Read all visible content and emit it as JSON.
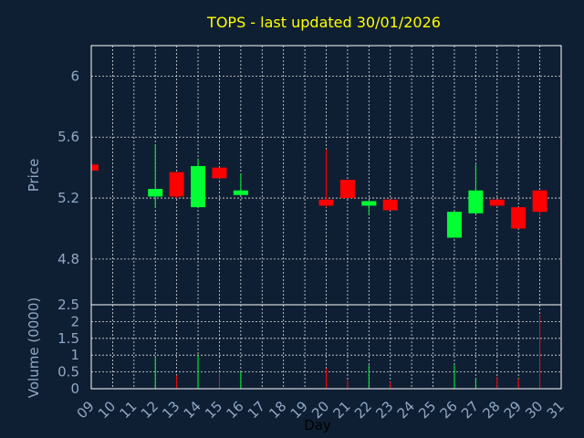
{
  "chart_data": {
    "type": "candlestick",
    "title": "TOPS - last updated 30/01/2026",
    "xlabel": "Day",
    "price_panel": {
      "ylabel": "Price",
      "ylim": [
        4.5,
        6.2
      ],
      "yticks": [
        "6",
        "5.6",
        "5.2",
        "4.8"
      ]
    },
    "volume_panel": {
      "ylabel": "Volume (0000)",
      "ylim": [
        0,
        2.5
      ],
      "yticks": [
        "2.5",
        "2",
        "1.5",
        "1",
        "0.5",
        "0"
      ]
    },
    "x_ticks": [
      "09",
      "10",
      "11",
      "12",
      "13",
      "14",
      "15",
      "16",
      "17",
      "18",
      "19",
      "20",
      "21",
      "22",
      "23",
      "24",
      "25",
      "26",
      "27",
      "28",
      "29",
      "30",
      "31"
    ],
    "up_color": "#00ff33",
    "down_color": "#ff0000",
    "candles": [
      {
        "day": "09",
        "open": 5.42,
        "high": 5.42,
        "low": 5.38,
        "close": 5.38
      },
      {
        "day": "12",
        "open": 5.21,
        "high": 5.55,
        "low": 5.14,
        "close": 5.26
      },
      {
        "day": "13",
        "open": 5.37,
        "high": 5.37,
        "low": 5.2,
        "close": 5.21
      },
      {
        "day": "14",
        "open": 5.14,
        "high": 5.46,
        "low": 5.14,
        "close": 5.41
      },
      {
        "day": "15",
        "open": 5.4,
        "high": 5.4,
        "low": 5.32,
        "close": 5.33
      },
      {
        "day": "16",
        "open": 5.22,
        "high": 5.36,
        "low": 5.22,
        "close": 5.25
      },
      {
        "day": "20",
        "open": 5.19,
        "high": 5.52,
        "low": 5.14,
        "close": 5.15
      },
      {
        "day": "21",
        "open": 5.32,
        "high": 5.32,
        "low": 5.2,
        "close": 5.2
      },
      {
        "day": "22",
        "open": 5.15,
        "high": 5.18,
        "low": 5.09,
        "close": 5.18
      },
      {
        "day": "23",
        "open": 5.19,
        "high": 5.19,
        "low": 5.12,
        "close": 5.12
      },
      {
        "day": "26",
        "open": 4.94,
        "high": 5.11,
        "low": 4.94,
        "close": 5.11
      },
      {
        "day": "27",
        "open": 5.1,
        "high": 5.42,
        "low": 5.1,
        "close": 5.25
      },
      {
        "day": "28",
        "open": 5.19,
        "high": 5.19,
        "low": 5.15,
        "close": 5.15
      },
      {
        "day": "29",
        "open": 5.14,
        "high": 5.14,
        "low": 5.0,
        "close": 5.0
      },
      {
        "day": "30",
        "open": 5.25,
        "high": 5.25,
        "low": 5.08,
        "close": 5.11
      }
    ],
    "volumes": [
      {
        "day": "12",
        "value": 0.95
      },
      {
        "day": "13",
        "value": 0.4
      },
      {
        "day": "14",
        "value": 1.0
      },
      {
        "day": "15",
        "value": 0.5
      },
      {
        "day": "16",
        "value": 0.5
      },
      {
        "day": "20",
        "value": 0.6
      },
      {
        "day": "21",
        "value": 0.25
      },
      {
        "day": "22",
        "value": 0.7
      },
      {
        "day": "23",
        "value": 0.2
      },
      {
        "day": "26",
        "value": 0.7
      },
      {
        "day": "27",
        "value": 0.3
      },
      {
        "day": "28",
        "value": 0.35
      },
      {
        "day": "29",
        "value": 0.3
      },
      {
        "day": "30",
        "value": 2.2
      }
    ]
  }
}
